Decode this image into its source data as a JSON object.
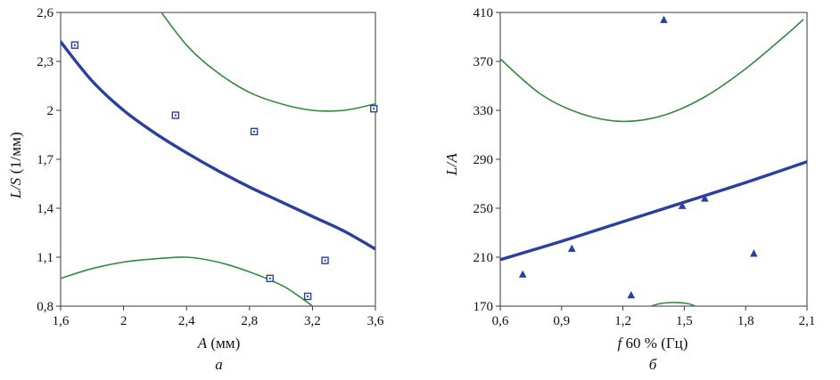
{
  "figure": {
    "background": "#ffffff"
  },
  "chart_data": [
    {
      "type": "scatter",
      "panel_label": "а",
      "ylabel_var": "L/S",
      "ylabel_unit": " (1/мм)",
      "xlabel_var": "A",
      "xlabel_unit": " (мм)",
      "xlim": [
        1.6,
        3.6
      ],
      "ylim": [
        0.8,
        2.6
      ],
      "xticks": [
        "1,6",
        "2",
        "2,4",
        "2,8",
        "3,2",
        "3,6"
      ],
      "yticks": [
        "0,8",
        "1,1",
        "1,4",
        "1,7",
        "2",
        "2,3",
        "2,6"
      ],
      "grid": false,
      "legend": false,
      "marker": "square-open",
      "colors": {
        "fit": "#2b3f9f",
        "band": "#338a3e",
        "marker": "#2b3f9f"
      },
      "points": [
        [
          1.69,
          2.4
        ],
        [
          2.33,
          1.97
        ],
        [
          2.83,
          1.87
        ],
        [
          3.59,
          2.01
        ],
        [
          2.93,
          0.97
        ],
        [
          3.17,
          0.86
        ],
        [
          3.28,
          1.08
        ]
      ],
      "fit_line": [
        [
          1.6,
          2.42
        ],
        [
          1.8,
          2.18
        ],
        [
          2.0,
          2.0
        ],
        [
          2.2,
          1.86
        ],
        [
          2.4,
          1.74
        ],
        [
          2.6,
          1.63
        ],
        [
          2.8,
          1.53
        ],
        [
          3.0,
          1.44
        ],
        [
          3.2,
          1.35
        ],
        [
          3.4,
          1.26
        ],
        [
          3.6,
          1.15
        ]
      ],
      "upper_band": [
        [
          2.18,
          2.68
        ],
        [
          2.4,
          2.4
        ],
        [
          2.6,
          2.23
        ],
        [
          2.8,
          2.11
        ],
        [
          3.0,
          2.04
        ],
        [
          3.2,
          2.0
        ],
        [
          3.4,
          2.0
        ],
        [
          3.6,
          2.04
        ]
      ],
      "lower_band": [
        [
          1.6,
          0.97
        ],
        [
          1.8,
          1.03
        ],
        [
          2.0,
          1.07
        ],
        [
          2.2,
          1.09
        ],
        [
          2.4,
          1.1
        ],
        [
          2.6,
          1.07
        ],
        [
          2.8,
          1.01
        ],
        [
          3.0,
          0.93
        ],
        [
          3.1,
          0.87
        ],
        [
          3.2,
          0.8
        ],
        [
          3.28,
          0.73
        ]
      ]
    },
    {
      "type": "scatter",
      "panel_label": "б",
      "ylabel_var": "L/A",
      "ylabel_unit": "",
      "xlabel_var": "f",
      "xlabel_unit": " 60 % (Гц)",
      "xlim": [
        0.6,
        2.1
      ],
      "ylim": [
        170,
        410
      ],
      "xticks": [
        "0,6",
        "0,9",
        "1,2",
        "1,5",
        "1,8",
        "2,1"
      ],
      "yticks": [
        "170",
        "210",
        "250",
        "290",
        "330",
        "370",
        "410"
      ],
      "grid": false,
      "legend": false,
      "marker": "triangle-filled",
      "colors": {
        "fit": "#2b3f9f",
        "band": "#338a3e",
        "marker": "#2b3f9f"
      },
      "points": [
        [
          0.71,
          196
        ],
        [
          0.95,
          217
        ],
        [
          1.24,
          179
        ],
        [
          1.4,
          404
        ],
        [
          1.49,
          252
        ],
        [
          1.6,
          258
        ],
        [
          1.84,
          213
        ]
      ],
      "fit_line": [
        [
          0.6,
          208
        ],
        [
          0.9,
          223
        ],
        [
          1.2,
          239
        ],
        [
          1.5,
          255
        ],
        [
          1.8,
          271
        ],
        [
          2.1,
          288
        ]
      ],
      "upper_band": [
        [
          0.6,
          372
        ],
        [
          0.8,
          343
        ],
        [
          1.0,
          327
        ],
        [
          1.2,
          321
        ],
        [
          1.4,
          326
        ],
        [
          1.6,
          341
        ],
        [
          1.8,
          364
        ],
        [
          2.0,
          392
        ],
        [
          2.08,
          404
        ]
      ],
      "lower_band": [
        [
          1.3,
          168
        ],
        [
          1.38,
          172
        ],
        [
          1.45,
          173
        ],
        [
          1.52,
          172
        ],
        [
          1.58,
          168
        ]
      ]
    }
  ]
}
